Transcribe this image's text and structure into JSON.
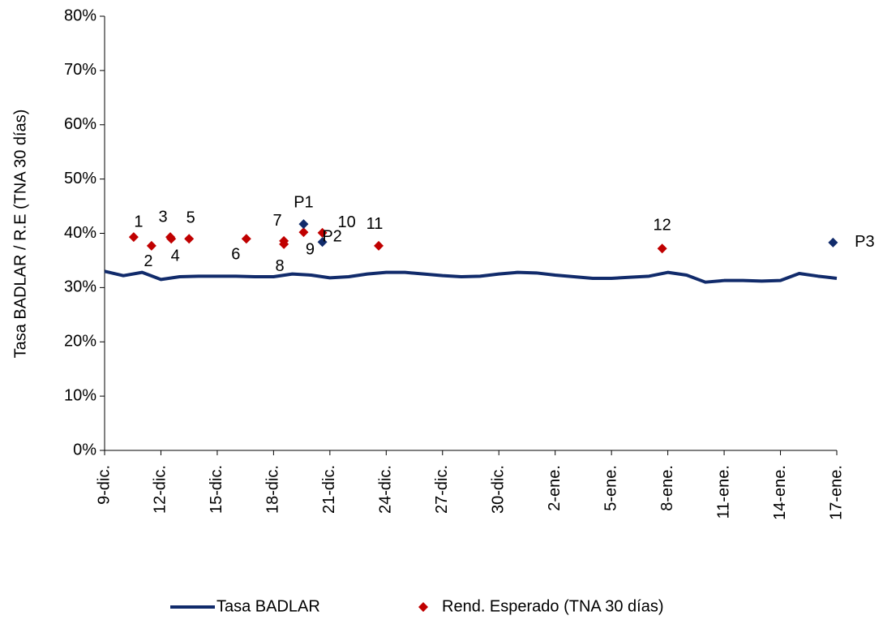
{
  "chart_data": {
    "type": "line",
    "y_label": "Tasa BADLAR / R.E (TNA 30 días)",
    "xlim": [
      0,
      39
    ],
    "xticks": [
      {
        "value": 0,
        "label": "9-dic."
      },
      {
        "value": 3,
        "label": "12-dic."
      },
      {
        "value": 6,
        "label": "15-dic."
      },
      {
        "value": 9,
        "label": "18-dic."
      },
      {
        "value": 12,
        "label": "21-dic."
      },
      {
        "value": 15,
        "label": "24-dic."
      },
      {
        "value": 18,
        "label": "27-dic."
      },
      {
        "value": 21,
        "label": "30-dic."
      },
      {
        "value": 24,
        "label": "2-ene."
      },
      {
        "value": 27,
        "label": "5-ene."
      },
      {
        "value": 30,
        "label": "8-ene."
      },
      {
        "value": 33,
        "label": "11-ene."
      },
      {
        "value": 36,
        "label": "14-ene."
      },
      {
        "value": 39,
        "label": "17-ene."
      }
    ],
    "ylim": [
      0,
      80
    ],
    "yticks": [
      {
        "value": 0,
        "label": "0%"
      },
      {
        "value": 10,
        "label": "10%"
      },
      {
        "value": 20,
        "label": "20%"
      },
      {
        "value": 30,
        "label": "30%"
      },
      {
        "value": 40,
        "label": "40%"
      },
      {
        "value": 50,
        "label": "50%"
      },
      {
        "value": 60,
        "label": "60%"
      },
      {
        "value": 70,
        "label": "70%"
      },
      {
        "value": 80,
        "label": "80%"
      }
    ],
    "legend": "bottom",
    "series": [
      {
        "name": "Tasa BADLAR",
        "type": "line",
        "color": "#112b6b",
        "x": [
          0,
          1,
          2,
          3,
          4,
          5,
          6,
          7,
          8,
          9,
          10,
          11,
          12,
          13,
          14,
          15,
          16,
          17,
          18,
          19,
          20,
          21,
          22,
          23,
          24,
          25,
          26,
          27,
          28,
          29,
          30,
          31,
          32,
          33,
          34,
          35,
          36,
          37,
          38,
          39
        ],
        "values": [
          33.0,
          32.2,
          32.8,
          31.5,
          32.0,
          32.1,
          32.1,
          32.1,
          32.0,
          32.0,
          32.5,
          32.3,
          31.8,
          32.0,
          32.5,
          32.8,
          32.8,
          32.5,
          32.2,
          32.0,
          32.1,
          32.5,
          32.8,
          32.7,
          32.3,
          32.0,
          31.7,
          31.7,
          31.9,
          32.1,
          32.8,
          32.3,
          31.0,
          31.3,
          31.3,
          31.2,
          31.3,
          32.6,
          32.1,
          31.7
        ]
      },
      {
        "name": "Rend. Esperado (TNA 30 días)",
        "type": "scatter",
        "color": "#c00000",
        "x": [
          1.55,
          2.5,
          3.5,
          3.55,
          4.5,
          7.55,
          9.55,
          9.55,
          10.6,
          11.6,
          14.6,
          29.7
        ],
        "values": [
          39.3,
          37.7,
          39.3,
          39.0,
          39.0,
          39.0,
          38.6,
          38.0,
          40.2,
          40.1,
          37.7,
          37.2
        ],
        "labels": [
          "1",
          "2",
          "3",
          "4",
          "5",
          "6",
          "7",
          "8",
          "9",
          "10",
          "11",
          "12"
        ]
      },
      {
        "type": "scatter",
        "color": "#112b6b",
        "x": [
          10.6,
          11.6,
          38.8
        ],
        "values": [
          41.7,
          38.4,
          38.3
        ],
        "labels": [
          "P1",
          "P2",
          "P3"
        ]
      }
    ]
  }
}
